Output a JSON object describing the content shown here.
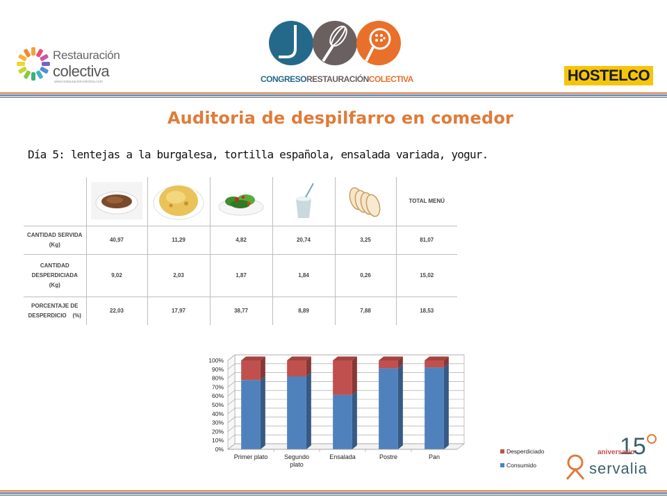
{
  "header": {
    "logo_left": {
      "line1": "Restauración",
      "line2": "colectiva",
      "url": "www.restauracioncolectiva.com"
    },
    "logo_center": {
      "part1": "CONGRESO",
      "part2": "RESTAURACIÓN",
      "part3": "COLECTIVA"
    },
    "logo_right": "HOSTELCO"
  },
  "title": "Auditoria de despilfarro en comedor",
  "subtitle": "Día 5: lentejas a la burgalesa, tortilla española, ensalada variada, yogur.",
  "table": {
    "total_header": "TOTAL MENÚ",
    "dish_icons": [
      "lentils-plate-icon",
      "tortilla-icon",
      "salad-icon",
      "yogurt-icon",
      "bread-icon"
    ],
    "rows": [
      {
        "label_line1": "CANTIDAD SERVIDA",
        "label_line2": "(Kg)",
        "values": [
          "40,97",
          "11,29",
          "4,82",
          "20,74",
          "3,25",
          "81,07"
        ]
      },
      {
        "label_line1": "CANTIDAD",
        "label_line2": "DESPERDICIADA",
        "label_line3": "(Kg)",
        "values": [
          "9,02",
          "2,03",
          "1,87",
          "1,84",
          "0,26",
          "15,02"
        ]
      },
      {
        "label_line1": "PORCENTAJE DE",
        "label_line2": "DESPERDICIO",
        "label_unit": "(%)",
        "values": [
          "22,03",
          "17,97",
          "38,77",
          "8,89",
          "7,88",
          "18,53"
        ]
      }
    ]
  },
  "chart_data": {
    "type": "bar",
    "stacked": true,
    "three_d": true,
    "categories": [
      "Primer plato",
      "Segundo plato",
      "Ensalada",
      "Postre",
      "Pan"
    ],
    "series": [
      {
        "name": "Consumido",
        "values": [
          77.97,
          82.03,
          61.23,
          91.11,
          92.12
        ],
        "color": "#4f81bd"
      },
      {
        "name": "Desperdiciado",
        "values": [
          22.03,
          17.97,
          38.77,
          8.89,
          7.88
        ],
        "color": "#c0504d"
      }
    ],
    "ylim": [
      0,
      100
    ],
    "yticks": [
      "0%",
      "10%",
      "20%",
      "30%",
      "40%",
      "50%",
      "60%",
      "70%",
      "80%",
      "90%",
      "100%"
    ],
    "grid": true,
    "legend_position": "bottom-right"
  },
  "footer_logo": {
    "number": "15",
    "line1": "aniversario",
    "line2": "servalia"
  }
}
